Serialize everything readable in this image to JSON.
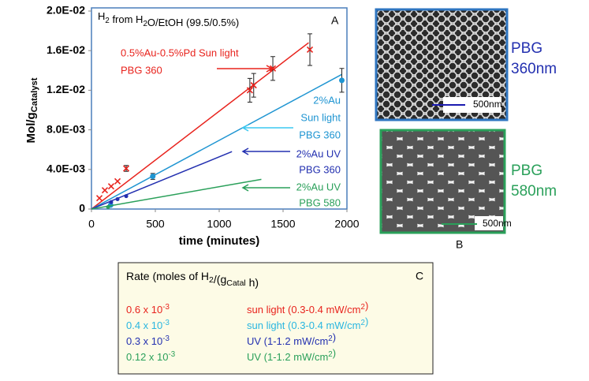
{
  "chart_data": {
    "type": "scatter",
    "title": [
      "H",
      {
        "sub": "2"
      },
      " from H",
      {
        "sub": "2"
      },
      "O/EtOH (99.5/0.5%)"
    ],
    "panel_label": "A",
    "xlabel": "time (minutes)",
    "ylabel": [
      "Mol/g",
      {
        "sub": "Catalyst"
      }
    ],
    "xlim": [
      0,
      2000
    ],
    "xticks": [
      0,
      500,
      1000,
      1500,
      2000
    ],
    "ylim": [
      0,
      0.02
    ],
    "yticks": [
      0,
      {
        "value": 0.004,
        "label": "4.0E-03"
      },
      {
        "value": 0.008,
        "label": "8.0E-03"
      },
      {
        "value": 0.012,
        "label": "1.2E-02"
      },
      {
        "value": 0.016,
        "label": "1.6E-02"
      },
      {
        "value": 0.02,
        "label": "2.0E-02"
      }
    ],
    "series": [
      {
        "name": [
          "0.5%Au-0.5%Pd Sun light",
          "PBG 360"
        ],
        "color": "#e8231d",
        "marker": "x",
        "x": [
          62,
          105,
          154,
          204,
          272,
          1240,
          1270,
          1420,
          1710
        ],
        "values": [
          0.0011,
          0.0019,
          0.0023,
          0.0028,
          0.0041,
          0.012,
          0.0125,
          0.0142,
          0.0161
        ],
        "errors": [
          null,
          null,
          null,
          null,
          0.0003,
          0.0012,
          0.0012,
          0.0012,
          0.0016
        ],
        "fit": {
          "x": [
            0,
            1700
          ],
          "values": [
            0,
            0.0168
          ]
        }
      },
      {
        "name": [
          "2%Au",
          "Sun light",
          "PBG 360"
        ],
        "color": "#1f95d2",
        "marker": "circle",
        "x": [
          150,
          480,
          1960
        ],
        "values": [
          0.0004,
          0.0033,
          0.013
        ],
        "errors": [
          null,
          0.0003,
          0.0012
        ],
        "fit": {
          "x": [
            0,
            1960
          ],
          "values": [
            0,
            0.0136
          ]
        }
      },
      {
        "name": [
          "2%Au UV",
          "PBG 360"
        ],
        "color": "#2330b0",
        "marker": "circle",
        "x": [
          154,
          204,
          272
        ],
        "values": [
          0.0007,
          0.001,
          0.0013
        ],
        "errors": [
          null,
          null,
          null
        ],
        "fit": {
          "x": [
            0,
            1100
          ],
          "values": [
            0,
            0.0058
          ]
        }
      },
      {
        "name": [
          "2%Au UV",
          "PBG 580"
        ],
        "color": "#2aa05a",
        "marker": "circle",
        "x": [
          130
        ],
        "values": [
          0.0002
        ],
        "errors": [
          null
        ],
        "fit": {
          "x": [
            0,
            1330
          ],
          "values": [
            0,
            0.003
          ]
        }
      }
    ]
  },
  "images": [
    {
      "label": [
        "PBG",
        "360nm"
      ],
      "scale_bar": "500nm"
    },
    {
      "label": [
        "PBG",
        "580nm"
      ],
      "scale_bar": "500nm",
      "panel_label": "B"
    }
  ],
  "table": {
    "header": [
      "Rate (moles of H",
      {
        "sub": "2"
      },
      "/(g",
      {
        "sub": "Catal"
      },
      " h)"
    ],
    "panel_label": "C",
    "rows": [
      {
        "color": "#e8231d",
        "rate": [
          "0.6  x 10",
          {
            "sup": "-3"
          }
        ],
        "condition": [
          "sun light (0.3-0.4 mW/cm",
          {
            "sup": "2"
          },
          ")"
        ]
      },
      {
        "color": "#29b6e0",
        "rate": [
          "0.4  x 10",
          {
            "sup": "-3"
          }
        ],
        "condition": [
          "sun light (0.3-0.4 mW/cm",
          {
            "sup": "2"
          },
          ")"
        ]
      },
      {
        "color": "#2330b0",
        "rate": [
          "0.3  x 10",
          {
            "sup": "-3"
          }
        ],
        "condition": [
          "UV (1-1.2 mW/cm",
          {
            "sup": "2"
          },
          ")"
        ]
      },
      {
        "color": "#2aa05a",
        "rate": [
          "0.12 x 10",
          {
            "sup": "-3"
          }
        ],
        "condition": [
          "UV (1-1.2 mW/cm",
          {
            "sup": "2"
          },
          ")"
        ]
      }
    ]
  }
}
